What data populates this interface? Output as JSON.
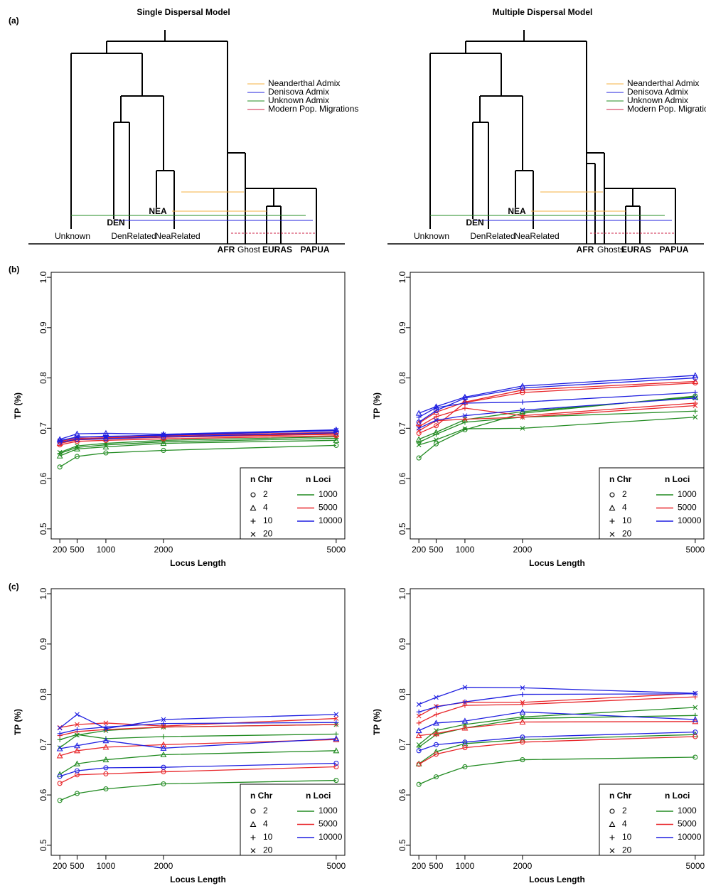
{
  "panel_labels": [
    "(a)",
    "(b)",
    "(c)"
  ],
  "diagrams": [
    {
      "title": "Single Dispersal Model",
      "leaves": [
        "Unknown",
        "DEN",
        "NEA",
        "DenRelated",
        "NeaRelated",
        "AFR",
        "Ghost",
        "EURAS",
        "PAPUA"
      ],
      "legend": [
        {
          "label": "Neanderthal Admix",
          "color": "#f5b041"
        },
        {
          "label": "Denisova Admix",
          "color": "#2222dd"
        },
        {
          "label": "Unknown Admix",
          "color": "#228b22"
        },
        {
          "label": "Modern Pop. Migrations",
          "color": "#cc2244"
        }
      ]
    },
    {
      "title": "Multiple Dispersal Model",
      "leaves": [
        "Unknown",
        "DEN",
        "NEA",
        "DenRelated",
        "NeaRelated",
        "AFR",
        "Ghosts",
        "EURAS",
        "PAPUA"
      ],
      "legend": [
        {
          "label": "Neanderthal Admix",
          "color": "#f5b041"
        },
        {
          "label": "Denisova Admix",
          "color": "#2222dd"
        },
        {
          "label": "Unknown Admix",
          "color": "#228b22"
        },
        {
          "label": "Modern Pop. Migrations",
          "color": "#cc2244"
        }
      ]
    }
  ],
  "chart_data": [
    {
      "type": "line",
      "x_label": "Locus Length",
      "y_label": "TP (%)",
      "x": [
        200,
        500,
        1000,
        2000,
        5000
      ],
      "xlim": [
        50,
        5150
      ],
      "xticks": [
        200,
        500,
        1000,
        2000,
        5000
      ],
      "ylim": [
        0.48,
        1.01
      ],
      "yticks": [
        0.5,
        0.6,
        0.7,
        0.8,
        0.9,
        {
          "value": 1,
          "label": "1.0"
        }
      ],
      "legend": {
        "chr_title": "n Chr",
        "chr": [
          {
            "label": "2",
            "marker": "circle"
          },
          {
            "label": "4",
            "marker": "triangle"
          },
          {
            "label": "10",
            "marker": "plus"
          },
          {
            "label": "20",
            "marker": "cross"
          }
        ],
        "loci_title": "n Loci",
        "loci": [
          {
            "label": "1000",
            "color": "#228b22"
          },
          {
            "label": "5000",
            "color": "#e8262a"
          },
          {
            "label": "10000",
            "color": "#1f1fe0"
          }
        ]
      },
      "series": [
        {
          "chr": 0,
          "loci": 0,
          "values": [
            0.623,
            0.644,
            0.651,
            0.656,
            0.666
          ]
        },
        {
          "chr": 1,
          "loci": 0,
          "values": [
            0.645,
            0.659,
            0.663,
            0.67,
            0.676
          ]
        },
        {
          "chr": 2,
          "loci": 0,
          "values": [
            0.65,
            0.662,
            0.667,
            0.673,
            0.68
          ]
        },
        {
          "chr": 3,
          "loci": 0,
          "values": [
            0.652,
            0.665,
            0.67,
            0.676,
            0.683
          ]
        },
        {
          "chr": 0,
          "loci": 1,
          "values": [
            0.667,
            0.674,
            0.676,
            0.679,
            0.685
          ]
        },
        {
          "chr": 1,
          "loci": 1,
          "values": [
            0.67,
            0.677,
            0.679,
            0.682,
            0.688
          ]
        },
        {
          "chr": 2,
          "loci": 1,
          "values": [
            0.672,
            0.678,
            0.68,
            0.683,
            0.69
          ]
        },
        {
          "chr": 3,
          "loci": 1,
          "values": [
            0.674,
            0.68,
            0.681,
            0.685,
            0.692
          ]
        },
        {
          "chr": 0,
          "loci": 2,
          "values": [
            0.672,
            0.678,
            0.679,
            0.683,
            0.691
          ]
        },
        {
          "chr": 1,
          "loci": 2,
          "values": [
            0.678,
            0.689,
            0.69,
            0.688,
            0.697
          ]
        },
        {
          "chr": 2,
          "loci": 2,
          "values": [
            0.676,
            0.682,
            0.684,
            0.686,
            0.695
          ]
        },
        {
          "chr": 3,
          "loci": 2,
          "values": [
            0.675,
            0.683,
            0.683,
            0.687,
            0.696
          ]
        }
      ]
    },
    {
      "type": "line",
      "x_label": "Locus Length",
      "y_label": "TP (%)",
      "x": [
        200,
        500,
        1000,
        2000,
        5000
      ],
      "xlim": [
        50,
        5150
      ],
      "xticks": [
        200,
        500,
        1000,
        2000,
        5000
      ],
      "ylim": [
        0.48,
        1.01
      ],
      "yticks": [
        0.5,
        0.6,
        0.7,
        0.8,
        0.9,
        {
          "value": 1,
          "label": "1.0"
        }
      ],
      "legend": {
        "chr_title": "n Chr",
        "chr": [
          {
            "label": "2",
            "marker": "circle"
          },
          {
            "label": "4",
            "marker": "triangle"
          },
          {
            "label": "10",
            "marker": "plus"
          },
          {
            "label": "20",
            "marker": "cross"
          }
        ],
        "loci_title": "n Loci",
        "loci": [
          {
            "label": "1000",
            "color": "#228b22"
          },
          {
            "label": "5000",
            "color": "#e8262a"
          },
          {
            "label": "10000",
            "color": "#1f1fe0"
          }
        ]
      },
      "series": [
        {
          "chr": 0,
          "loci": 0,
          "values": [
            0.641,
            0.669,
            0.697,
            0.73,
            0.764
          ]
        },
        {
          "chr": 1,
          "loci": 0,
          "values": [
            0.678,
            0.692,
            0.717,
            0.733,
            0.762
          ]
        },
        {
          "chr": 2,
          "loci": 0,
          "values": [
            0.672,
            0.688,
            0.712,
            0.722,
            0.734
          ]
        },
        {
          "chr": 3,
          "loci": 0,
          "values": [
            0.667,
            0.677,
            0.699,
            0.7,
            0.722
          ]
        },
        {
          "chr": 0,
          "loci": 1,
          "values": [
            0.69,
            0.705,
            0.751,
            0.771,
            0.79
          ]
        },
        {
          "chr": 1,
          "loci": 1,
          "values": [
            0.71,
            0.732,
            0.752,
            0.776,
            0.793
          ]
        },
        {
          "chr": 2,
          "loci": 1,
          "values": [
            0.703,
            0.723,
            0.74,
            0.725,
            0.75
          ]
        },
        {
          "chr": 3,
          "loci": 1,
          "values": [
            0.695,
            0.715,
            0.718,
            0.722,
            0.745
          ]
        },
        {
          "chr": 0,
          "loci": 2,
          "values": [
            0.712,
            0.735,
            0.76,
            0.78,
            0.8
          ]
        },
        {
          "chr": 1,
          "loci": 2,
          "values": [
            0.73,
            0.743,
            0.762,
            0.784,
            0.805
          ]
        },
        {
          "chr": 2,
          "loci": 2,
          "values": [
            0.722,
            0.741,
            0.75,
            0.752,
            0.771
          ]
        },
        {
          "chr": 3,
          "loci": 2,
          "values": [
            0.7,
            0.716,
            0.725,
            0.736,
            0.76
          ]
        }
      ]
    },
    {
      "type": "line",
      "x_label": "Locus Length",
      "y_label": "TP (%)",
      "x": [
        200,
        500,
        1000,
        2000,
        5000
      ],
      "xlim": [
        50,
        5150
      ],
      "xticks": [
        200,
        500,
        1000,
        2000,
        5000
      ],
      "ylim": [
        0.48,
        1.01
      ],
      "yticks": [
        0.5,
        0.6,
        0.7,
        0.8,
        0.9,
        {
          "value": 1,
          "label": "1.0"
        }
      ],
      "legend": {
        "chr_title": "n Chr",
        "chr": [
          {
            "label": "2",
            "marker": "circle"
          },
          {
            "label": "4",
            "marker": "triangle"
          },
          {
            "label": "10",
            "marker": "plus"
          },
          {
            "label": "20",
            "marker": "cross"
          }
        ],
        "loci_title": "n Loci",
        "loci": [
          {
            "label": "1000",
            "color": "#228b22"
          },
          {
            "label": "5000",
            "color": "#e8262a"
          },
          {
            "label": "10000",
            "color": "#1f1fe0"
          }
        ]
      },
      "series": [
        {
          "chr": 0,
          "loci": 0,
          "values": [
            0.589,
            0.603,
            0.612,
            0.622,
            0.629
          ]
        },
        {
          "chr": 1,
          "loci": 0,
          "values": [
            0.641,
            0.662,
            0.67,
            0.68,
            0.688
          ]
        },
        {
          "chr": 2,
          "loci": 0,
          "values": [
            0.71,
            0.72,
            0.712,
            0.716,
            0.721
          ]
        },
        {
          "chr": 3,
          "loci": 0,
          "values": [
            0.694,
            0.719,
            0.728,
            0.735,
            0.74
          ]
        },
        {
          "chr": 0,
          "loci": 1,
          "values": [
            0.623,
            0.64,
            0.642,
            0.646,
            0.656
          ]
        },
        {
          "chr": 1,
          "loci": 1,
          "values": [
            0.678,
            0.688,
            0.695,
            0.7,
            0.71
          ]
        },
        {
          "chr": 2,
          "loci": 1,
          "values": [
            0.718,
            0.726,
            0.73,
            0.735,
            0.74
          ]
        },
        {
          "chr": 3,
          "loci": 1,
          "values": [
            0.734,
            0.74,
            0.743,
            0.737,
            0.752
          ]
        },
        {
          "chr": 0,
          "loci": 2,
          "values": [
            0.637,
            0.648,
            0.654,
            0.655,
            0.663
          ]
        },
        {
          "chr": 1,
          "loci": 2,
          "values": [
            0.692,
            0.698,
            0.708,
            0.693,
            0.712
          ]
        },
        {
          "chr": 2,
          "loci": 2,
          "values": [
            0.722,
            0.73,
            0.735,
            0.742,
            0.744
          ]
        },
        {
          "chr": 3,
          "loci": 2,
          "values": [
            0.733,
            0.76,
            0.732,
            0.75,
            0.76
          ]
        }
      ]
    },
    {
      "type": "line",
      "x_label": "Locus Length",
      "y_label": "TP (%)",
      "x": [
        200,
        500,
        1000,
        2000,
        5000
      ],
      "xlim": [
        50,
        5150
      ],
      "xticks": [
        200,
        500,
        1000,
        2000,
        5000
      ],
      "ylim": [
        0.48,
        1.01
      ],
      "yticks": [
        0.5,
        0.6,
        0.7,
        0.8,
        0.9,
        {
          "value": 1,
          "label": "1.0"
        }
      ],
      "legend": {
        "chr_title": "n Chr",
        "chr": [
          {
            "label": "2",
            "marker": "circle"
          },
          {
            "label": "4",
            "marker": "triangle"
          },
          {
            "label": "10",
            "marker": "plus"
          },
          {
            "label": "20",
            "marker": "cross"
          }
        ],
        "loci_title": "n Loci",
        "loci": [
          {
            "label": "1000",
            "color": "#228b22"
          },
          {
            "label": "5000",
            "color": "#e8262a"
          },
          {
            "label": "10000",
            "color": "#1f1fe0"
          }
        ]
      },
      "series": [
        {
          "chr": 0,
          "loci": 0,
          "values": [
            0.621,
            0.636,
            0.656,
            0.67,
            0.675
          ]
        },
        {
          "chr": 1,
          "loci": 0,
          "values": [
            0.662,
            0.686,
            0.702,
            0.71,
            0.72
          ]
        },
        {
          "chr": 2,
          "loci": 0,
          "values": [
            0.695,
            0.72,
            0.733,
            0.752,
            0.758
          ]
        },
        {
          "chr": 3,
          "loci": 0,
          "values": [
            0.7,
            0.728,
            0.74,
            0.755,
            0.774
          ]
        },
        {
          "chr": 0,
          "loci": 1,
          "values": [
            0.661,
            0.681,
            0.694,
            0.705,
            0.716
          ]
        },
        {
          "chr": 1,
          "loci": 1,
          "values": [
            0.718,
            0.722,
            0.733,
            0.745,
            0.746
          ]
        },
        {
          "chr": 2,
          "loci": 1,
          "values": [
            0.743,
            0.76,
            0.778,
            0.78,
            0.795
          ]
        },
        {
          "chr": 3,
          "loci": 1,
          "values": [
            0.757,
            0.776,
            0.784,
            0.784,
            0.802
          ]
        },
        {
          "chr": 0,
          "loci": 2,
          "values": [
            0.688,
            0.7,
            0.705,
            0.715,
            0.725
          ]
        },
        {
          "chr": 1,
          "loci": 2,
          "values": [
            0.728,
            0.743,
            0.747,
            0.765,
            0.75
          ]
        },
        {
          "chr": 2,
          "loci": 2,
          "values": [
            0.765,
            0.775,
            0.785,
            0.8,
            0.801
          ]
        },
        {
          "chr": 3,
          "loci": 2,
          "values": [
            0.78,
            0.794,
            0.814,
            0.813,
            0.802
          ]
        }
      ]
    }
  ]
}
